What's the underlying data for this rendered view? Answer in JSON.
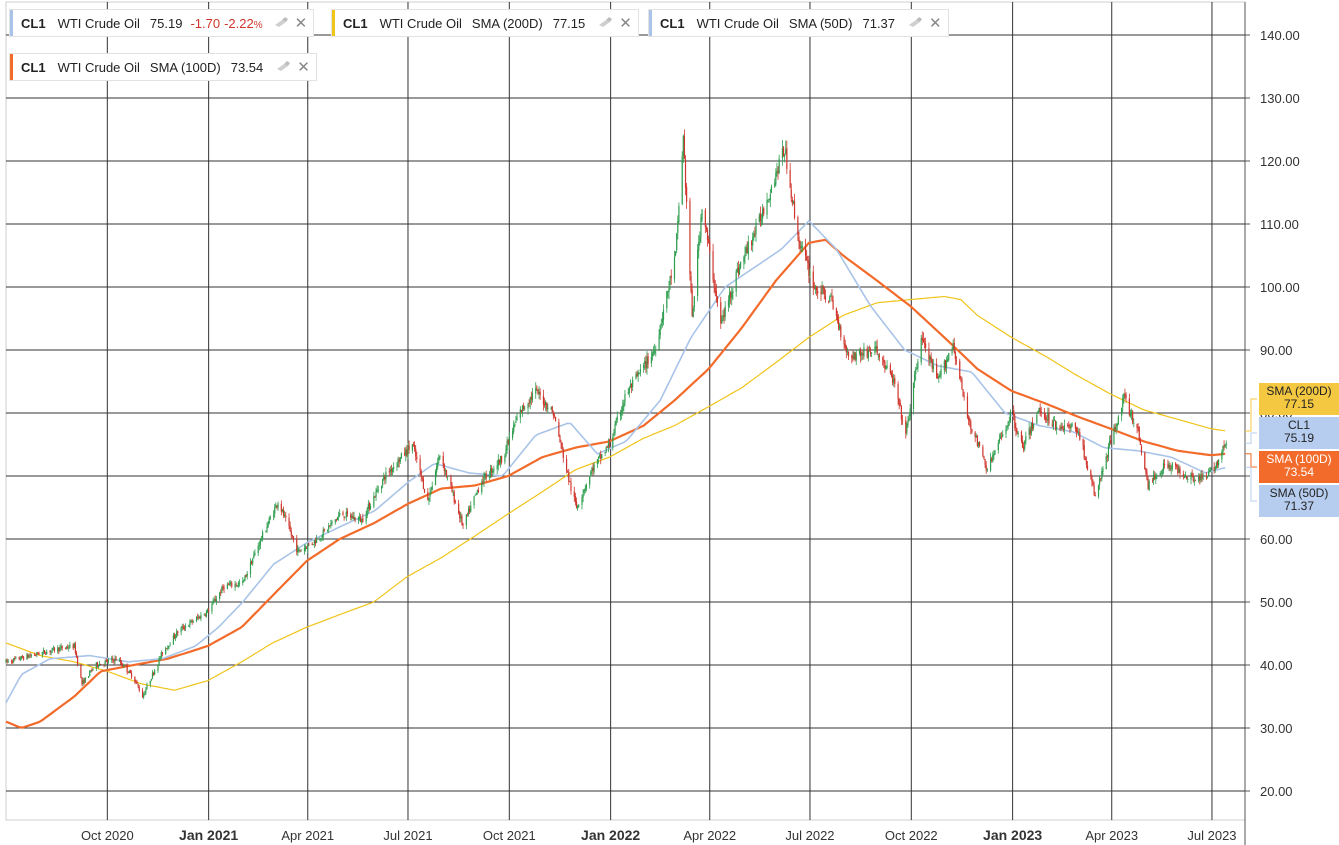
{
  "legends": [
    {
      "symbol": "CL1",
      "name": "WTI Crude Oil",
      "indicator": "",
      "value": "75.19",
      "change": "-1.70",
      "pct": "-2.22",
      "pct_unit": "%",
      "color": "#a9c4e8"
    },
    {
      "symbol": "CL1",
      "name": "WTI Crude Oil",
      "indicator": "SMA (200D)",
      "value": "77.15",
      "color": "#f0c419"
    },
    {
      "symbol": "CL1",
      "name": "WTI Crude Oil",
      "indicator": "SMA (50D)",
      "value": "71.37",
      "color": "#a9c4e8"
    },
    {
      "symbol": "CL1",
      "name": "WTI Crude Oil",
      "indicator": "SMA (100D)",
      "value": "73.54",
      "color": "#f26b2a"
    }
  ],
  "badges": [
    {
      "label": "SMA (200D)",
      "value": "77.15",
      "bg": "#f5c842",
      "fg": "#222222",
      "price": 77.15
    },
    {
      "label": "CL1",
      "value": "75.19",
      "bg": "#b7cdef",
      "fg": "#222222",
      "price": 75.19
    },
    {
      "label": "SMA (100D)",
      "value": "73.54",
      "bg": "#f26b2a",
      "fg": "#ffffff",
      "price": 73.54
    },
    {
      "label": "SMA (50D)",
      "value": "71.37",
      "bg": "#b7cdef",
      "fg": "#222222",
      "price": 71.37
    }
  ],
  "chart_data": {
    "type": "candlestick",
    "title": "",
    "xlabel": "",
    "ylabel": "",
    "ylim": [
      15,
      145
    ],
    "xlim": [
      "2020-07-01",
      "2023-07-31"
    ],
    "y_ticks": [
      "20.00",
      "30.00",
      "40.00",
      "50.00",
      "60.00",
      "70.00",
      "80.00",
      "90.00",
      "100.00",
      "110.00",
      "120.00",
      "130.00",
      "140.00"
    ],
    "x_ticks": [
      {
        "label": "Oct 2020",
        "date": "2020-10-01",
        "bold": false
      },
      {
        "label": "Jan 2021",
        "date": "2021-01-01",
        "bold": true
      },
      {
        "label": "Apr 2021",
        "date": "2021-04-01",
        "bold": false
      },
      {
        "label": "Jul 2021",
        "date": "2021-07-01",
        "bold": false
      },
      {
        "label": "Oct 2021",
        "date": "2021-10-01",
        "bold": false
      },
      {
        "label": "Jan 2022",
        "date": "2022-01-01",
        "bold": true
      },
      {
        "label": "Apr 2022",
        "date": "2022-04-01",
        "bold": false
      },
      {
        "label": "Jul 2022",
        "date": "2022-07-01",
        "bold": false
      },
      {
        "label": "Oct 2022",
        "date": "2022-10-01",
        "bold": false
      },
      {
        "label": "Jan 2023",
        "date": "2023-01-01",
        "bold": true
      },
      {
        "label": "Apr 2023",
        "date": "2023-04-01",
        "bold": false
      },
      {
        "label": "Jul 2023",
        "date": "2023-07-01",
        "bold": false
      }
    ],
    "grid": true,
    "colors": {
      "up": "#2e9e4f",
      "down": "#d0352b",
      "sma50": "#a9c4e8",
      "sma100": "#f26b2a",
      "sma200": "#f0c419"
    },
    "price_path": [
      [
        "2020-07-01",
        40.5
      ],
      [
        "2020-08-15",
        42.5
      ],
      [
        "2020-09-01",
        43
      ],
      [
        "2020-09-08",
        37
      ],
      [
        "2020-09-20",
        40
      ],
      [
        "2020-10-10",
        41
      ],
      [
        "2020-10-25",
        38
      ],
      [
        "2020-11-02",
        35
      ],
      [
        "2020-11-20",
        42
      ],
      [
        "2020-12-05",
        45.5
      ],
      [
        "2020-12-31",
        48.5
      ],
      [
        "2021-01-15",
        52.5
      ],
      [
        "2021-02-01",
        53
      ],
      [
        "2021-02-15",
        59
      ],
      [
        "2021-03-05",
        66
      ],
      [
        "2021-03-23",
        58
      ],
      [
        "2021-04-10",
        60
      ],
      [
        "2021-05-01",
        64
      ],
      [
        "2021-05-20",
        63
      ],
      [
        "2021-06-10",
        70
      ],
      [
        "2021-07-05",
        75
      ],
      [
        "2021-07-19",
        66
      ],
      [
        "2021-07-30",
        73.5
      ],
      [
        "2021-08-20",
        62
      ],
      [
        "2021-09-05",
        69
      ],
      [
        "2021-09-25",
        73
      ],
      [
        "2021-10-10",
        80
      ],
      [
        "2021-10-25",
        83.5
      ],
      [
        "2021-11-10",
        80
      ],
      [
        "2021-11-26",
        68
      ],
      [
        "2021-12-01",
        65
      ],
      [
        "2021-12-15",
        71
      ],
      [
        "2021-12-31",
        75
      ],
      [
        "2022-01-15",
        83
      ],
      [
        "2022-02-10",
        90
      ],
      [
        "2022-03-01",
        105
      ],
      [
        "2022-03-08",
        123.7
      ],
      [
        "2022-03-16",
        95
      ],
      [
        "2022-03-25",
        113
      ],
      [
        "2022-04-11",
        94
      ],
      [
        "2022-04-25",
        102
      ],
      [
        "2022-05-15",
        110
      ],
      [
        "2022-06-08",
        122
      ],
      [
        "2022-06-20",
        108
      ],
      [
        "2022-07-05",
        100
      ],
      [
        "2022-07-20",
        98
      ],
      [
        "2022-08-05",
        89
      ],
      [
        "2022-08-30",
        90
      ],
      [
        "2022-09-15",
        85
      ],
      [
        "2022-09-26",
        76.5
      ],
      [
        "2022-10-10",
        92
      ],
      [
        "2022-10-25",
        85
      ],
      [
        "2022-11-08",
        91
      ],
      [
        "2022-11-20",
        80
      ],
      [
        "2022-12-09",
        71
      ],
      [
        "2022-12-31",
        80
      ],
      [
        "2023-01-10",
        74.5
      ],
      [
        "2023-01-25",
        80.5
      ],
      [
        "2023-02-10",
        78
      ],
      [
        "2023-03-01",
        77.5
      ],
      [
        "2023-03-17",
        66.7
      ],
      [
        "2023-03-31",
        75.5
      ],
      [
        "2023-04-12",
        82.5
      ],
      [
        "2023-04-25",
        77
      ],
      [
        "2023-05-04",
        68.5
      ],
      [
        "2023-05-20",
        72
      ],
      [
        "2023-06-10",
        70
      ],
      [
        "2023-06-25",
        69.5
      ],
      [
        "2023-07-05",
        72
      ],
      [
        "2023-07-14",
        75.19
      ]
    ],
    "sma50": [
      [
        "2020-07-01",
        34
      ],
      [
        "2020-07-15",
        38.5
      ],
      [
        "2020-08-10",
        41
      ],
      [
        "2020-09-15",
        41.5
      ],
      [
        "2020-10-20",
        40.5
      ],
      [
        "2020-11-20",
        41
      ],
      [
        "2020-12-20",
        43
      ],
      [
        "2021-01-10",
        46
      ],
      [
        "2021-02-01",
        50
      ],
      [
        "2021-03-01",
        56
      ],
      [
        "2021-04-01",
        59.5
      ],
      [
        "2021-05-01",
        62
      ],
      [
        "2021-06-01",
        64.5
      ],
      [
        "2021-07-01",
        69
      ],
      [
        "2021-07-25",
        72
      ],
      [
        "2021-08-25",
        70.5
      ],
      [
        "2021-09-25",
        70
      ],
      [
        "2021-10-25",
        76.5
      ],
      [
        "2021-11-25",
        78.5
      ],
      [
        "2021-12-20",
        73.5
      ],
      [
        "2022-01-15",
        75.5
      ],
      [
        "2022-02-15",
        82
      ],
      [
        "2022-03-15",
        92
      ],
      [
        "2022-04-15",
        100
      ],
      [
        "2022-05-15",
        103.5
      ],
      [
        "2022-06-05",
        106
      ],
      [
        "2022-06-30",
        110.5
      ],
      [
        "2022-07-25",
        106
      ],
      [
        "2022-08-25",
        97
      ],
      [
        "2022-09-25",
        90
      ],
      [
        "2022-10-25",
        87.5
      ],
      [
        "2022-11-25",
        86.5
      ],
      [
        "2022-12-25",
        80
      ],
      [
        "2023-01-25",
        78
      ],
      [
        "2023-02-25",
        77
      ],
      [
        "2023-03-25",
        74.5
      ],
      [
        "2023-04-25",
        74
      ],
      [
        "2023-05-25",
        73
      ],
      [
        "2023-06-25",
        70.5
      ],
      [
        "2023-07-14",
        71.37
      ]
    ],
    "sma100": [
      [
        "2020-07-01",
        31
      ],
      [
        "2020-07-15",
        30
      ],
      [
        "2020-08-01",
        31
      ],
      [
        "2020-09-01",
        35
      ],
      [
        "2020-09-25",
        39
      ],
      [
        "2020-10-25",
        40
      ],
      [
        "2020-11-25",
        41
      ],
      [
        "2020-12-31",
        43
      ],
      [
        "2021-01-31",
        46
      ],
      [
        "2021-02-28",
        51
      ],
      [
        "2021-03-31",
        56.5
      ],
      [
        "2021-04-30",
        60
      ],
      [
        "2021-05-31",
        62.5
      ],
      [
        "2021-06-30",
        65.5
      ],
      [
        "2021-07-31",
        68
      ],
      [
        "2021-08-31",
        68.5
      ],
      [
        "2021-09-30",
        70
      ],
      [
        "2021-10-31",
        73
      ],
      [
        "2021-11-30",
        74.5
      ],
      [
        "2021-12-31",
        75.5
      ],
      [
        "2022-01-31",
        78
      ],
      [
        "2022-02-28",
        82
      ],
      [
        "2022-03-31",
        87
      ],
      [
        "2022-04-30",
        93.5
      ],
      [
        "2022-05-31",
        101
      ],
      [
        "2022-06-30",
        107
      ],
      [
        "2022-07-15",
        107.5
      ],
      [
        "2022-07-31",
        105
      ],
      [
        "2022-08-31",
        101
      ],
      [
        "2022-09-30",
        97
      ],
      [
        "2022-10-31",
        92
      ],
      [
        "2022-11-30",
        87
      ],
      [
        "2022-12-31",
        83.5
      ],
      [
        "2023-01-31",
        81.5
      ],
      [
        "2023-02-28",
        79.5
      ],
      [
        "2023-03-31",
        77.5
      ],
      [
        "2023-04-30",
        75.5
      ],
      [
        "2023-05-31",
        74
      ],
      [
        "2023-06-30",
        73.3
      ],
      [
        "2023-07-14",
        73.54
      ]
    ],
    "sma200": [
      [
        "2020-07-01",
        43.5
      ],
      [
        "2020-08-01",
        41.5
      ],
      [
        "2020-09-01",
        40.5
      ],
      [
        "2020-10-01",
        39
      ],
      [
        "2020-11-01",
        37
      ],
      [
        "2020-12-01",
        36
      ],
      [
        "2020-12-31",
        37.5
      ],
      [
        "2021-01-31",
        40.5
      ],
      [
        "2021-02-28",
        43.5
      ],
      [
        "2021-03-31",
        46
      ],
      [
        "2021-04-30",
        48
      ],
      [
        "2021-05-31",
        50
      ],
      [
        "2021-06-30",
        54
      ],
      [
        "2021-07-31",
        57
      ],
      [
        "2021-08-31",
        60.5
      ],
      [
        "2021-09-30",
        64
      ],
      [
        "2021-10-31",
        67.5
      ],
      [
        "2021-11-30",
        71
      ],
      [
        "2021-12-31",
        73
      ],
      [
        "2022-01-31",
        76
      ],
      [
        "2022-02-28",
        78
      ],
      [
        "2022-03-31",
        81
      ],
      [
        "2022-04-30",
        84
      ],
      [
        "2022-05-31",
        88
      ],
      [
        "2022-06-30",
        92
      ],
      [
        "2022-07-31",
        95.5
      ],
      [
        "2022-08-31",
        97.5
      ],
      [
        "2022-09-30",
        98
      ],
      [
        "2022-10-31",
        98.5
      ],
      [
        "2022-11-15",
        98
      ],
      [
        "2022-11-30",
        95.5
      ],
      [
        "2022-12-31",
        92
      ],
      [
        "2023-01-31",
        89
      ],
      [
        "2023-02-28",
        86
      ],
      [
        "2023-03-31",
        83
      ],
      [
        "2023-04-30",
        80.5
      ],
      [
        "2023-05-31",
        79
      ],
      [
        "2023-06-30",
        77.5
      ],
      [
        "2023-07-14",
        77.15
      ]
    ]
  }
}
